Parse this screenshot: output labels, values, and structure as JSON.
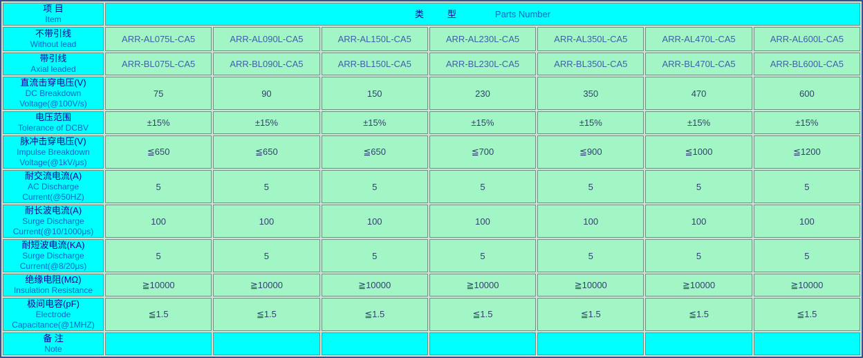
{
  "colors": {
    "header_bg": "#00ffff",
    "cell_bg": "#a2f6c6",
    "gap_bg": "#cfe4d8",
    "cell_border": "#6f8f80",
    "outer_border": "#35518c",
    "cn_text": "#000099",
    "en_text": "#0066cc",
    "value_text": "#31406e",
    "part_text": "#3f5fa7"
  },
  "header": {
    "item_cn": "项 目",
    "item_en": "Item",
    "type_cn_1": "类",
    "type_cn_2": "型",
    "type_en": "Parts Number"
  },
  "rows": [
    {
      "id": "without-lead",
      "cn": "不带引线",
      "en": "Without lead",
      "kind": "part",
      "values": [
        "ARR-AL075L-CA5",
        "ARR-AL090L-CA5",
        "ARR-AL150L-CA5",
        "ARR-AL230L-CA5",
        "ARR-AL350L-CA5",
        "ARR-AL470L-CA5",
        "ARR-AL600L-CA5"
      ]
    },
    {
      "id": "axial-leaded",
      "cn": "带引线",
      "en": "Axial leaded",
      "kind": "part",
      "values": [
        "ARR-BL075L-CA5",
        "ARR-BL090L-CA5",
        "ARR-BL150L-CA5",
        "ARR-BL230L-CA5",
        "ARR-BL350L-CA5",
        "ARR-BL470L-CA5",
        "ARR-BL600L-CA5"
      ]
    },
    {
      "id": "dc-breakdown-voltage",
      "cn": "直流击穿电压(V)",
      "en": "DC Breakdown Voltage(@100V/s)",
      "kind": "value",
      "values": [
        "75",
        "90",
        "150",
        "230",
        "350",
        "470",
        "600"
      ]
    },
    {
      "id": "tolerance-of-dcbv",
      "cn": "电压范围",
      "en": "Tolerance of DCBV",
      "kind": "value",
      "values": [
        "±15%",
        "±15%",
        "±15%",
        "±15%",
        "±15%",
        "±15%",
        "±15%"
      ]
    },
    {
      "id": "impulse-breakdown-voltage",
      "cn": "脉冲击穿电压(V)",
      "en": "Impulse Breakdown Voltage(@1kV/μs)",
      "kind": "value",
      "values": [
        "≦650",
        "≦650",
        "≦650",
        "≦700",
        "≦900",
        "≦1000",
        "≦1200"
      ]
    },
    {
      "id": "ac-discharge-current",
      "cn": "耐交流电流(A)",
      "en": "AC Discharge Current(@50HZ)",
      "kind": "value",
      "values": [
        "5",
        "5",
        "5",
        "5",
        "5",
        "5",
        "5"
      ]
    },
    {
      "id": "surge-discharge-current-long-wave",
      "cn": "耐长波电流(A)",
      "en": "Surge Discharge Current(@10/1000μs)",
      "kind": "value",
      "values": [
        "100",
        "100",
        "100",
        "100",
        "100",
        "100",
        "100"
      ]
    },
    {
      "id": "surge-discharge-current-short-wave",
      "cn": "耐短波电流(KA)",
      "en": "Surge Discharge Current(@8/20μs)",
      "kind": "value",
      "values": [
        "5",
        "5",
        "5",
        "5",
        "5",
        "5",
        "5"
      ]
    },
    {
      "id": "insulation-resistance",
      "cn": "绝缘电阻(MΩ)",
      "en": "Insulation Resistance",
      "kind": "value",
      "values": [
        "≧10000",
        "≧10000",
        "≧10000",
        "≧10000",
        "≧10000",
        "≧10000",
        "≧10000"
      ]
    },
    {
      "id": "electrode-capacitance",
      "cn": "极间电容(pF)",
      "en": "Electrode Capacitance(@1MHZ)",
      "kind": "value",
      "values": [
        "≦1.5",
        "≦1.5",
        "≦1.5",
        "≦1.5",
        "≦1.5",
        "≦1.5",
        "≦1.5"
      ]
    },
    {
      "id": "note",
      "cn": "备 注",
      "en": "Note",
      "kind": "note",
      "values": [
        "",
        "",
        "",
        "",
        "",
        "",
        ""
      ]
    }
  ]
}
